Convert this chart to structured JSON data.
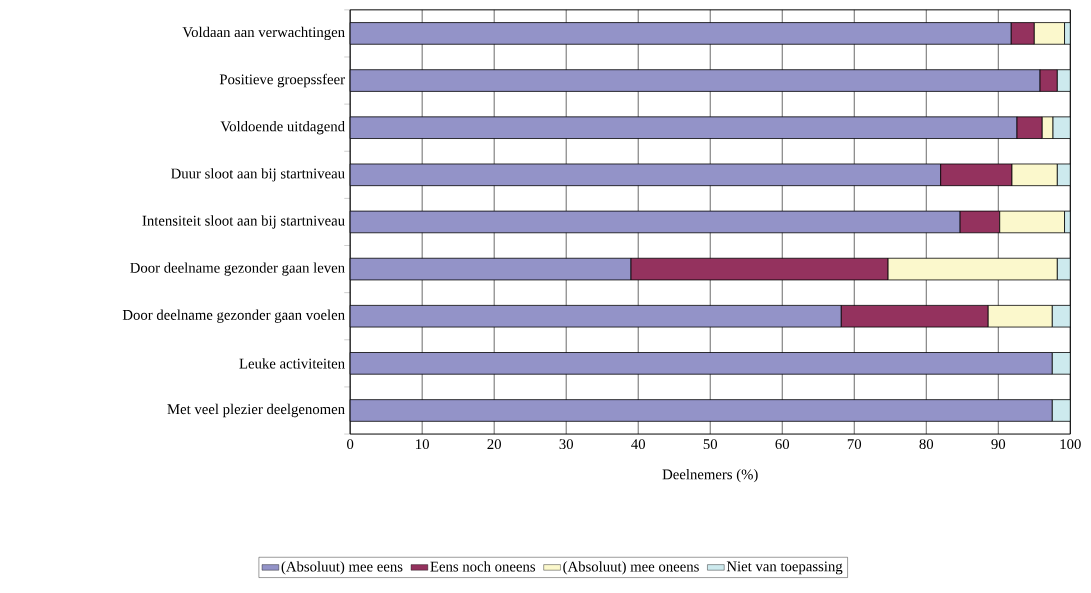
{
  "chart_data": {
    "type": "bar",
    "orientation": "horizontal",
    "stacked": true,
    "xlabel": "Deelnemers (%)",
    "categories": [
      "Voldaan aan verwachtingen",
      "Positieve groepssfeer",
      "Voldoende uitdagend",
      "Duur sloot aan bij startniveau",
      "Intensiteit sloot aan bij startniveau",
      "Door deelname gezonder gaan leven",
      "Door deelname gezonder gaan voelen",
      "Leuke activiteiten",
      "Met veel plezier deelgenomen"
    ],
    "series": [
      {
        "name": "(Absoluut) mee eens",
        "color": "#9393c8",
        "values": [
          91.8,
          95.8,
          92.6,
          82.0,
          84.7,
          39.0,
          68.2,
          97.5,
          97.5
        ]
      },
      {
        "name": "Eens noch oneens",
        "color": "#94325e",
        "values": [
          3.2,
          2.4,
          3.5,
          9.9,
          5.5,
          35.7,
          20.4,
          null,
          null
        ]
      },
      {
        "name": "(Absoluut) mee oneens",
        "color": "#fbf8cc",
        "values": [
          4.2,
          null,
          1.5,
          6.3,
          9.0,
          23.5,
          8.9,
          null,
          null
        ]
      },
      {
        "name": "Niet van toepassing",
        "color": "#cdeaee",
        "values": [
          0.8,
          1.8,
          2.4,
          1.8,
          0.8,
          1.8,
          2.5,
          2.5,
          2.5
        ]
      }
    ],
    "xlim": [
      0,
      100
    ],
    "xticks": [
      0,
      10,
      20,
      30,
      40,
      50,
      60,
      70,
      80,
      90,
      100
    ],
    "grid": "x",
    "legend": "bottom"
  }
}
